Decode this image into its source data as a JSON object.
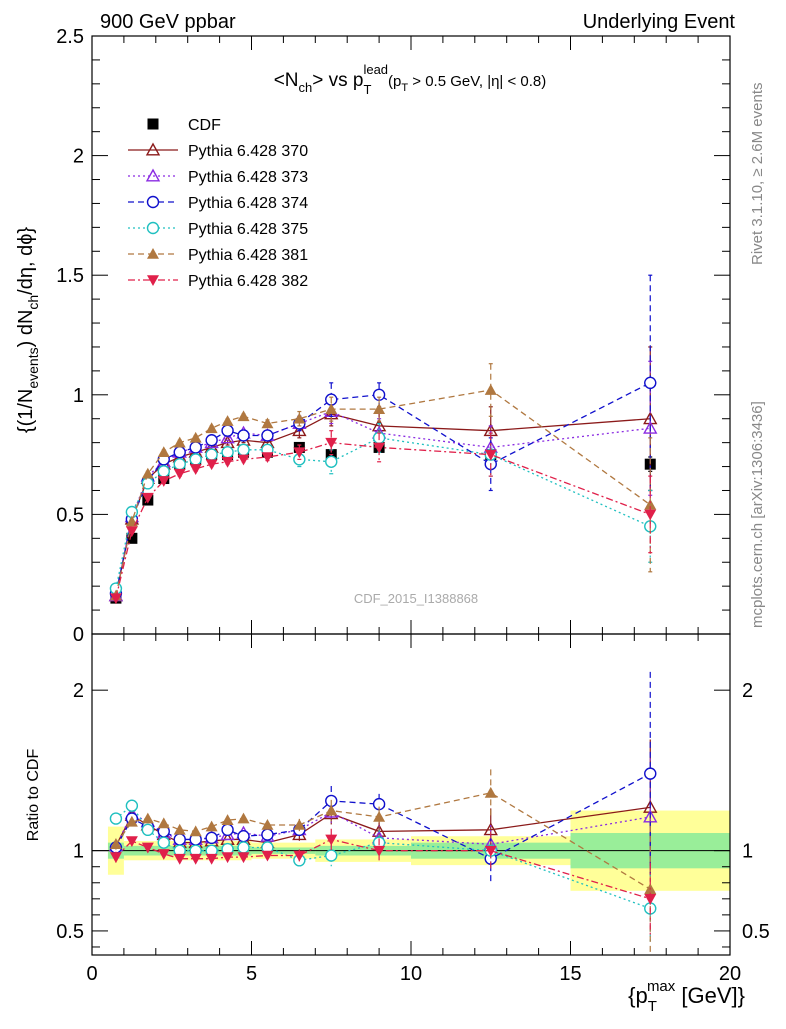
{
  "header": {
    "left": "900 GeV ppbar",
    "right": "Underlying Event"
  },
  "side_labels": {
    "rivet": "Rivet 3.1.10, ≥ 2.6M events",
    "source": "mcplots.cern.ch [arXiv:1306:3436]"
  },
  "watermark": "CDF_2015_I1388868",
  "chart_data": [
    {
      "type": "scatter",
      "panel": "main",
      "title_parts": {
        "n": "<N",
        "ch": "ch",
        "vs": "> vs p",
        "sup": "lead",
        "sub": "T",
        "cut1": "(p",
        "cut1sub": "T",
        "cut2": " > 0.5 GeV, |η| < 0.8)"
      },
      "ylabel_parts": {
        "a": "{(1/N",
        "b": "events",
        "c": ") dN",
        "d": "ch",
        "e": "/dη, dϕ}"
      },
      "xlim": [
        0,
        20
      ],
      "ylim": [
        0,
        2.5
      ],
      "y_ticks": [
        "0",
        "0.5",
        "1",
        "1.5",
        "2",
        "2.5"
      ],
      "x": [
        0.75,
        1.25,
        1.75,
        2.25,
        2.75,
        3.25,
        3.75,
        4.25,
        4.75,
        5.5,
        6.5,
        7.5,
        9.0,
        12.5,
        17.5
      ],
      "series": [
        {
          "name": "CDF",
          "color": "#000000",
          "marker": "square-filled",
          "line": "none",
          "values": [
            0.15,
            0.4,
            0.56,
            0.65,
            0.71,
            0.73,
            0.75,
            0.75,
            0.76,
            0.76,
            0.78,
            0.75,
            0.78,
            0.75,
            0.71
          ],
          "errors": [
            0.005,
            0.005,
            0.005,
            0.005,
            0.005,
            0.005,
            0.005,
            0.005,
            0.005,
            0.005,
            0.01,
            0.01,
            0.01,
            0.02,
            0.03
          ]
        },
        {
          "name": "Pythia 6.428 370",
          "color": "#8b1a1a",
          "marker": "triangle-open",
          "line": "solid",
          "values": [
            0.16,
            0.48,
            0.65,
            0.71,
            0.74,
            0.76,
            0.78,
            0.8,
            0.81,
            0.8,
            0.85,
            0.92,
            0.87,
            0.85,
            0.9
          ],
          "errors": [
            0.005,
            0.01,
            0.01,
            0.01,
            0.01,
            0.01,
            0.01,
            0.01,
            0.01,
            0.015,
            0.03,
            0.05,
            0.07,
            0.1,
            0.3
          ]
        },
        {
          "name": "Pythia 6.428 373",
          "color": "#8a2be2",
          "marker": "triangle-open",
          "line": "dotted",
          "values": [
            0.16,
            0.49,
            0.66,
            0.72,
            0.76,
            0.78,
            0.8,
            0.82,
            0.84,
            0.83,
            0.88,
            0.93,
            0.84,
            0.78,
            0.86
          ],
          "errors": [
            0.005,
            0.01,
            0.01,
            0.01,
            0.01,
            0.01,
            0.01,
            0.01,
            0.01,
            0.015,
            0.03,
            0.05,
            0.06,
            0.09,
            0.28
          ]
        },
        {
          "name": "Pythia 6.428 374",
          "color": "#1010cc",
          "marker": "circle-open",
          "line": "dashed",
          "values": [
            0.17,
            0.48,
            0.64,
            0.73,
            0.76,
            0.78,
            0.81,
            0.85,
            0.83,
            0.83,
            0.88,
            0.98,
            1.0,
            0.71,
            1.05
          ],
          "errors": [
            0.005,
            0.01,
            0.01,
            0.01,
            0.01,
            0.01,
            0.01,
            0.01,
            0.01,
            0.015,
            0.03,
            0.07,
            0.05,
            0.11,
            0.45
          ]
        },
        {
          "name": "Pythia 6.428 375",
          "color": "#20c0c0",
          "marker": "circle-open",
          "line": "dotted",
          "values": [
            0.19,
            0.51,
            0.63,
            0.68,
            0.71,
            0.73,
            0.75,
            0.76,
            0.77,
            0.77,
            0.73,
            0.72,
            0.82,
            0.75,
            0.45
          ],
          "errors": [
            0.005,
            0.01,
            0.01,
            0.01,
            0.01,
            0.01,
            0.01,
            0.01,
            0.01,
            0.015,
            0.03,
            0.05,
            0.06,
            0.09,
            0.15
          ]
        },
        {
          "name": "Pythia 6.428 381",
          "color": "#b07840",
          "marker": "triangle-filled",
          "line": "dashed",
          "values": [
            0.16,
            0.47,
            0.67,
            0.76,
            0.8,
            0.82,
            0.86,
            0.89,
            0.91,
            0.88,
            0.9,
            0.94,
            0.94,
            1.02,
            0.54
          ],
          "errors": [
            0.005,
            0.01,
            0.01,
            0.01,
            0.01,
            0.01,
            0.01,
            0.01,
            0.01,
            0.015,
            0.03,
            0.05,
            0.05,
            0.11,
            0.28
          ]
        },
        {
          "name": "Pythia 6.428 382",
          "color": "#e0204a",
          "marker": "triangle-down-filled",
          "line": "dashdot",
          "values": [
            0.15,
            0.43,
            0.57,
            0.64,
            0.67,
            0.69,
            0.71,
            0.72,
            0.73,
            0.74,
            0.76,
            0.8,
            0.78,
            0.75,
            0.5
          ],
          "errors": [
            0.005,
            0.01,
            0.01,
            0.01,
            0.01,
            0.01,
            0.01,
            0.01,
            0.01,
            0.015,
            0.03,
            0.05,
            0.06,
            0.09,
            0.16
          ]
        }
      ]
    },
    {
      "type": "scatter",
      "panel": "ratio",
      "ylabel": "Ratio to CDF",
      "xlabel_parts": {
        "a": "{p",
        "sup": "max",
        "sub": "T",
        "b": " [GeV]}"
      },
      "xlim": [
        0,
        20
      ],
      "ylim": [
        0.35,
        2.35
      ],
      "y_ticks": [
        "0.5",
        "1",
        "2"
      ],
      "x_ticks": [
        "0",
        "5",
        "10",
        "15",
        "20"
      ],
      "bands": [
        {
          "x": [
            0.5,
            1.0
          ],
          "green": [
            0.95,
            1.05
          ],
          "yellow": [
            0.85,
            1.15
          ]
        },
        {
          "x": [
            1.0,
            5.0
          ],
          "green": [
            0.97,
            1.03
          ],
          "yellow": [
            0.94,
            1.06
          ]
        },
        {
          "x": [
            5.0,
            7.0
          ],
          "green": [
            0.98,
            1.02
          ],
          "yellow": [
            0.95,
            1.05
          ]
        },
        {
          "x": [
            7.0,
            10.0
          ],
          "green": [
            0.97,
            1.03
          ],
          "yellow": [
            0.93,
            1.07
          ]
        },
        {
          "x": [
            10.0,
            15.0
          ],
          "green": [
            0.95,
            1.05
          ],
          "yellow": [
            0.91,
            1.09
          ]
        },
        {
          "x": [
            15.0,
            20.0
          ],
          "green": [
            0.89,
            1.11
          ],
          "yellow": [
            0.75,
            1.25
          ]
        }
      ],
      "series": [
        {
          "name": "Pythia 6.428 370",
          "values": [
            1.03,
            1.22,
            1.16,
            1.1,
            1.05,
            1.05,
            1.06,
            1.07,
            1.07,
            1.05,
            1.1,
            1.23,
            1.12,
            1.13,
            1.27
          ]
        },
        {
          "name": "Pythia 6.428 373",
          "values": [
            1.03,
            1.23,
            1.18,
            1.11,
            1.07,
            1.07,
            1.08,
            1.1,
            1.11,
            1.09,
            1.13,
            1.24,
            1.08,
            1.04,
            1.21
          ]
        },
        {
          "name": "Pythia 6.428 374",
          "values": [
            1.02,
            1.2,
            1.15,
            1.12,
            1.07,
            1.07,
            1.08,
            1.13,
            1.09,
            1.1,
            1.13,
            1.31,
            1.29,
            0.95,
            1.48
          ]
        },
        {
          "name": "Pythia 6.428 375",
          "values": [
            1.2,
            1.28,
            1.13,
            1.05,
            1.0,
            1.0,
            1.0,
            1.01,
            1.02,
            1.02,
            0.94,
            0.97,
            1.05,
            1.0,
            0.64
          ]
        },
        {
          "name": "Pythia 6.428 381",
          "values": [
            1.04,
            1.18,
            1.2,
            1.17,
            1.13,
            1.12,
            1.15,
            1.19,
            1.2,
            1.16,
            1.16,
            1.25,
            1.21,
            1.36,
            0.76
          ]
        },
        {
          "name": "Pythia 6.428 382",
          "values": [
            0.96,
            1.06,
            1.02,
            0.98,
            0.95,
            0.95,
            0.95,
            0.96,
            0.96,
            0.97,
            0.97,
            1.07,
            1.0,
            1.0,
            0.7
          ]
        }
      ]
    }
  ]
}
